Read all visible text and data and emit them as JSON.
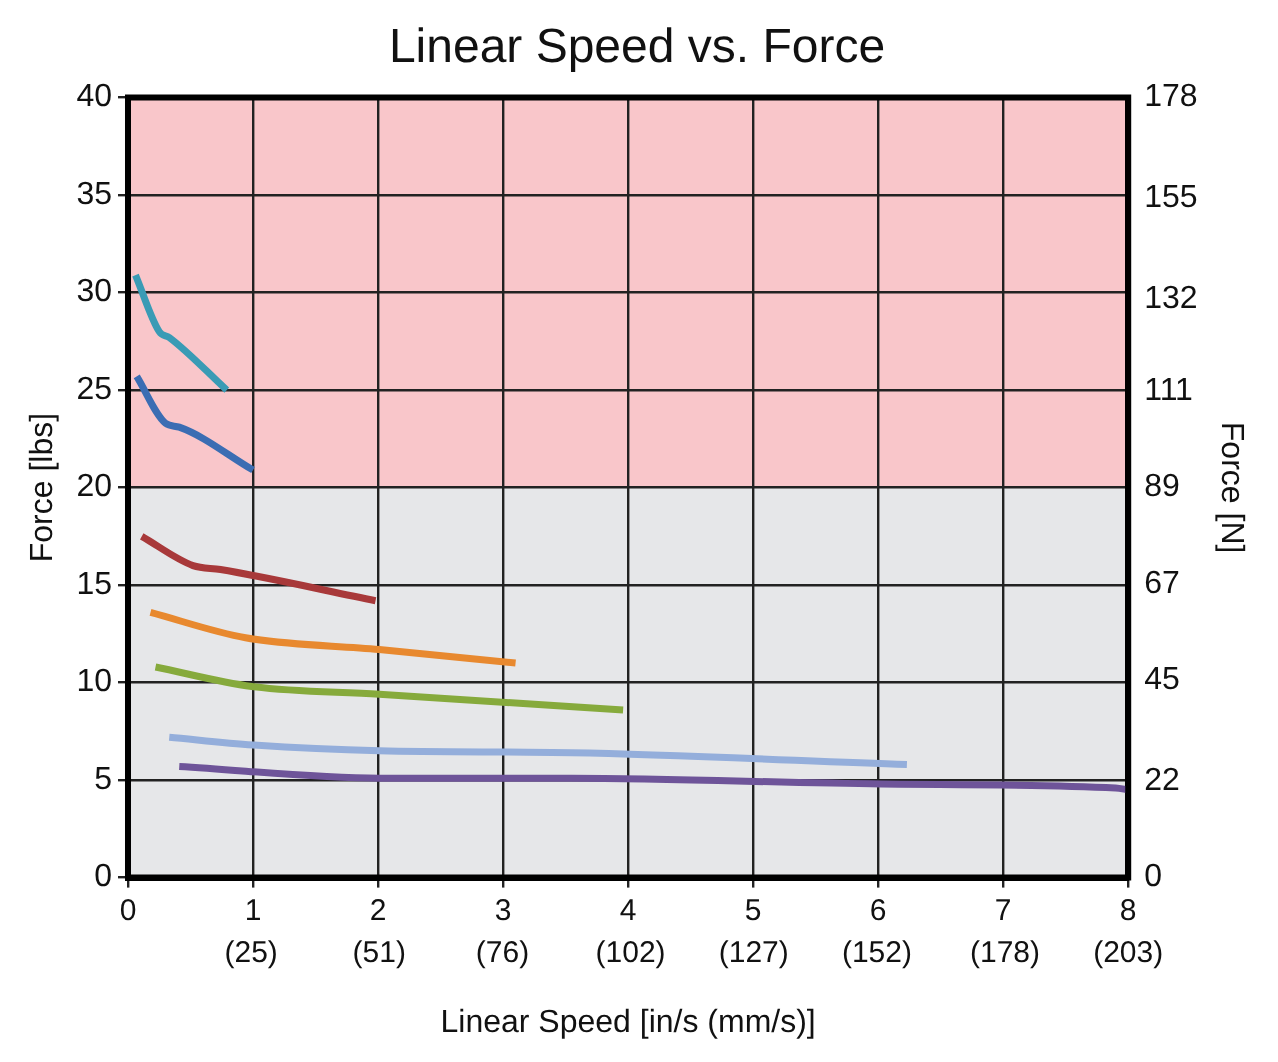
{
  "chart_data": {
    "type": "line",
    "title": "Linear Speed vs. Force",
    "xlabel": "Linear Speed [in/s (mm/s)]",
    "ylabel": "Force [lbs]",
    "y2label": "Force [N]",
    "xlim": [
      0,
      8
    ],
    "xticks": [
      0,
      1,
      2,
      3,
      4,
      5,
      6,
      7,
      8
    ],
    "x2lim": [
      0,
      203
    ],
    "x2ticks": [
      {
        "value": 25,
        "label": "(25)"
      },
      {
        "value": 51,
        "label": "(51)"
      },
      {
        "value": 76,
        "label": "(76)"
      },
      {
        "value": 102,
        "label": "(102)"
      },
      {
        "value": 127,
        "label": "(127)"
      },
      {
        "value": 152,
        "label": "(152)"
      },
      {
        "value": 178,
        "label": "(178)"
      },
      {
        "value": 203,
        "label": "(203)"
      }
    ],
    "ylim": [
      0,
      40
    ],
    "yticks": [
      0,
      5,
      10,
      15,
      20,
      25,
      30,
      35,
      40
    ],
    "y2lim": [
      0,
      178
    ],
    "y2ticks": [
      0,
      22,
      45,
      67,
      89,
      111,
      132,
      155,
      178
    ],
    "bands": [
      {
        "axis": "y",
        "from": 20,
        "to": 40,
        "color": "#f9c6ca"
      },
      {
        "axis": "y",
        "from": 0,
        "to": 20,
        "color": "#e6e7e9"
      }
    ],
    "grid": true,
    "legend": false,
    "marker": "none",
    "line_style": "solid",
    "series": [
      {
        "color": "#3a9bb5",
        "x": [
          0.06,
          0.25,
          0.33,
          0.79
        ],
        "values": [
          30.9,
          28.0,
          27.7,
          25.0
        ]
      },
      {
        "color": "#3b6db3",
        "x": [
          0.07,
          0.3,
          0.41,
          1.0
        ],
        "values": [
          25.7,
          23.3,
          23.1,
          20.9
        ]
      },
      {
        "color": "#a8393a",
        "x": [
          0.11,
          0.52,
          0.74,
          1.98
        ],
        "values": [
          17.5,
          16.0,
          15.8,
          14.2
        ]
      },
      {
        "color": "#e8892f",
        "x": [
          0.18,
          0.94,
          2.01,
          3.1
        ],
        "values": [
          13.6,
          12.3,
          11.7,
          11.0
        ]
      },
      {
        "color": "#86aa3c",
        "x": [
          0.22,
          0.99,
          2.01,
          3.96
        ],
        "values": [
          10.8,
          9.8,
          9.4,
          8.6
        ]
      },
      {
        "color": "#94aedb",
        "x": [
          0.33,
          1.0,
          2.01,
          3.55,
          6.23
        ],
        "values": [
          7.2,
          6.8,
          6.5,
          6.4,
          5.8
        ]
      },
      {
        "color": "#6e5499",
        "x": [
          0.41,
          2.01,
          3.55,
          6.03,
          7.9,
          8
        ],
        "values": [
          5.7,
          5.1,
          5.1,
          4.8,
          4.6,
          4.5
        ]
      }
    ]
  }
}
